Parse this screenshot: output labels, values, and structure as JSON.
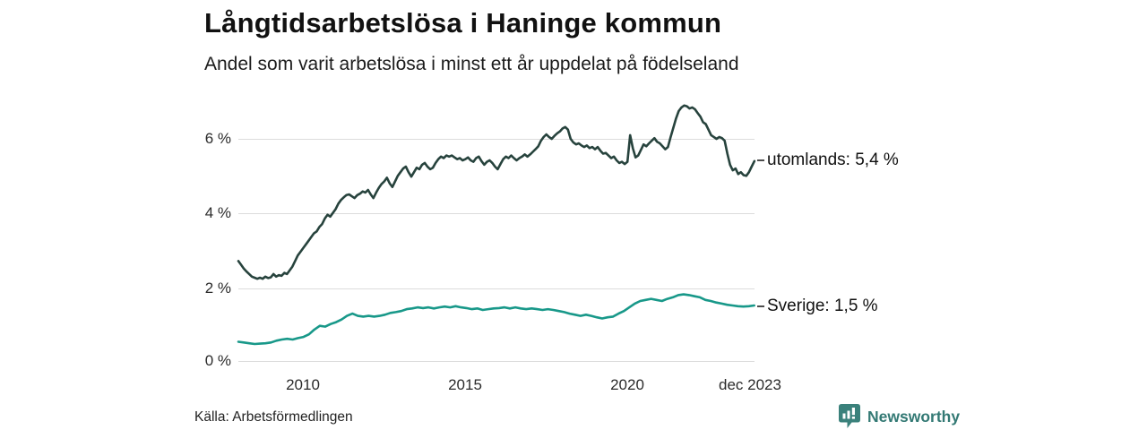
{
  "header": {
    "title": "Långtidsarbetslösa i Haninge kommun",
    "subtitle": "Andel som varit arbetslösa i minst ett år uppdelat på födelseland"
  },
  "footer": {
    "source": "Källa: Arbetsförmedlingen",
    "brand_name": "Newsworthy"
  },
  "colors": {
    "utomlands_line": "#27433d",
    "sverige_line": "#189889",
    "grid": "#dcdcdc",
    "brand_teal": "#337974",
    "label_dash": "#4d4d4d"
  },
  "chart_data": {
    "type": "line",
    "title": "Långtidsarbetslösa i Haninge kommun",
    "subtitle": "Andel som varit arbetslösa i minst ett år uppdelat på födelseland",
    "grid": "horizontal-only",
    "legend_position": "right-end-of-line",
    "x_axis": {
      "range": [
        2008.0,
        2023.92
      ],
      "ticks": [
        {
          "t": 2010,
          "label": "2010"
        },
        {
          "t": 2015,
          "label": "2015"
        },
        {
          "t": 2020,
          "label": "2020"
        },
        {
          "t": 2023.92,
          "label": "dec 2023"
        }
      ]
    },
    "y_axis": {
      "unit": "%",
      "range": [
        0,
        7
      ],
      "ticks": [
        {
          "v": 6,
          "label": "6 %"
        },
        {
          "v": 4,
          "label": "4 %"
        },
        {
          "v": 2,
          "label": "2 %"
        },
        {
          "v": 0,
          "label": "0 %"
        }
      ]
    },
    "series": [
      {
        "name": "utomlands",
        "label": "utomlands: 5,4 %",
        "last_value": 5.4,
        "color": "#27433d",
        "x_start": 2008.0,
        "x_step": 0.08333,
        "values": [
          2.7,
          2.6,
          2.5,
          2.42,
          2.35,
          2.28,
          2.25,
          2.22,
          2.25,
          2.22,
          2.28,
          2.24,
          2.26,
          2.35,
          2.28,
          2.32,
          2.3,
          2.38,
          2.35,
          2.45,
          2.55,
          2.7,
          2.85,
          2.95,
          3.05,
          3.15,
          3.25,
          3.35,
          3.45,
          3.5,
          3.62,
          3.7,
          3.85,
          3.95,
          3.9,
          4.0,
          4.1,
          4.25,
          4.35,
          4.42,
          4.48,
          4.5,
          4.45,
          4.4,
          4.48,
          4.52,
          4.58,
          4.55,
          4.62,
          4.5,
          4.4,
          4.55,
          4.68,
          4.78,
          4.85,
          4.95,
          4.8,
          4.7,
          4.85,
          5.0,
          5.1,
          5.2,
          5.25,
          5.1,
          4.98,
          5.1,
          5.22,
          5.18,
          5.3,
          5.35,
          5.25,
          5.18,
          5.22,
          5.35,
          5.45,
          5.52,
          5.48,
          5.55,
          5.52,
          5.55,
          5.5,
          5.45,
          5.48,
          5.42,
          5.45,
          5.5,
          5.42,
          5.38,
          5.48,
          5.52,
          5.4,
          5.3,
          5.38,
          5.42,
          5.35,
          5.25,
          5.18,
          5.32,
          5.45,
          5.52,
          5.48,
          5.55,
          5.48,
          5.42,
          5.48,
          5.52,
          5.58,
          5.52,
          5.58,
          5.65,
          5.72,
          5.8,
          5.95,
          6.05,
          6.12,
          6.05,
          6.0,
          6.08,
          6.15,
          6.2,
          6.28,
          6.32,
          6.25,
          6.0,
          5.9,
          5.85,
          5.88,
          5.82,
          5.78,
          5.82,
          5.75,
          5.78,
          5.72,
          5.78,
          5.68,
          5.6,
          5.62,
          5.55,
          5.48,
          5.52,
          5.42,
          5.35,
          5.38,
          5.32,
          5.38,
          6.1,
          5.75,
          5.5,
          5.55,
          5.7,
          5.85,
          5.8,
          5.88,
          5.95,
          6.02,
          5.92,
          5.88,
          5.8,
          5.72,
          5.78,
          6.05,
          6.3,
          6.55,
          6.75,
          6.85,
          6.9,
          6.88,
          6.82,
          6.85,
          6.8,
          6.7,
          6.6,
          6.45,
          6.4,
          6.25,
          6.1,
          6.05,
          6.0,
          6.05,
          6.02,
          5.95,
          5.6,
          5.3,
          5.15,
          5.2,
          5.05,
          5.1,
          5.02,
          5.0,
          5.1,
          5.25,
          5.4
        ]
      },
      {
        "name": "Sverige",
        "label": "Sverige: 1,5 %",
        "last_value": 1.5,
        "color": "#189889",
        "x_start": 2008.0,
        "x_step": 0.1675,
        "values": [
          0.52,
          0.5,
          0.48,
          0.46,
          0.47,
          0.48,
          0.5,
          0.55,
          0.58,
          0.6,
          0.58,
          0.62,
          0.65,
          0.72,
          0.85,
          0.95,
          0.93,
          1.0,
          1.05,
          1.12,
          1.22,
          1.28,
          1.22,
          1.2,
          1.22,
          1.2,
          1.22,
          1.25,
          1.3,
          1.32,
          1.35,
          1.4,
          1.42,
          1.45,
          1.43,
          1.45,
          1.42,
          1.45,
          1.47,
          1.45,
          1.48,
          1.45,
          1.43,
          1.4,
          1.42,
          1.38,
          1.4,
          1.42,
          1.43,
          1.45,
          1.42,
          1.45,
          1.42,
          1.4,
          1.42,
          1.4,
          1.38,
          1.4,
          1.38,
          1.35,
          1.32,
          1.28,
          1.25,
          1.22,
          1.25,
          1.22,
          1.18,
          1.15,
          1.18,
          1.2,
          1.28,
          1.35,
          1.45,
          1.55,
          1.62,
          1.65,
          1.68,
          1.65,
          1.62,
          1.68,
          1.72,
          1.78,
          1.8,
          1.78,
          1.75,
          1.72,
          1.65,
          1.62,
          1.58,
          1.55,
          1.52,
          1.5,
          1.48,
          1.47,
          1.48,
          1.5
        ]
      }
    ]
  }
}
